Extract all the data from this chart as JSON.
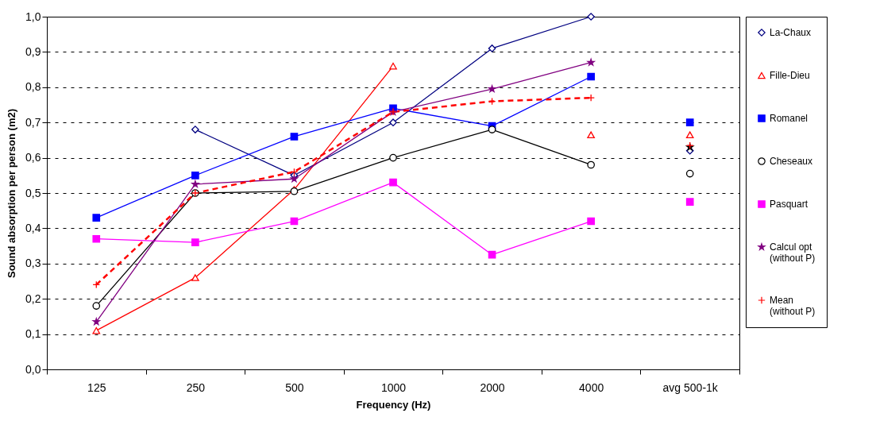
{
  "chart_data": {
    "type": "line",
    "xlabel": "Frequency (Hz)",
    "ylabel": "Sound absorption per person (m2)",
    "categories": [
      "125",
      "250",
      "500",
      "1000",
      "2000",
      "4000",
      "avg 500-1k"
    ],
    "ylim": [
      0,
      1
    ],
    "yticks": [
      {
        "value": 0,
        "label": "0,0"
      },
      {
        "value": 0.1,
        "label": "0,1"
      },
      {
        "value": 0.2,
        "label": "0,2"
      },
      {
        "value": 0.3,
        "label": "0,3"
      },
      {
        "value": 0.4,
        "label": "0,4"
      },
      {
        "value": 0.5,
        "label": "0,5"
      },
      {
        "value": 0.6,
        "label": "0,6"
      },
      {
        "value": 0.7,
        "label": "0,7"
      },
      {
        "value": 0.8,
        "label": "0,8"
      },
      {
        "value": 0.9,
        "label": "0,9"
      },
      {
        "value": 1,
        "label": "1,0"
      }
    ],
    "grid": "y",
    "legend": "right",
    "series": [
      {
        "name": "La-Chaux",
        "color": "#000080",
        "marker": "diamond",
        "line_style": "solid",
        "values": [
          null,
          0.68,
          0.55,
          0.7,
          0.91,
          1.0,
          null
        ]
      },
      {
        "name": "Fille-Dieu",
        "color": "#ff0000",
        "marker": "triangle",
        "line_style": "solid",
        "values": [
          0.11,
          0.26,
          0.51,
          0.86,
          null,
          0.665,
          null
        ]
      },
      {
        "name": "Romanel",
        "color": "#0000ff",
        "marker": "square",
        "line_style": "solid",
        "values": [
          0.43,
          0.55,
          0.66,
          0.74,
          0.69,
          0.83,
          null
        ]
      },
      {
        "name": "Cheseaux",
        "color": "#000000",
        "marker": "circle",
        "line_style": "solid",
        "values": [
          0.18,
          0.5,
          0.505,
          0.6,
          0.68,
          0.58,
          null
        ]
      },
      {
        "name": "Pasquart",
        "color": "#ff00ff",
        "marker": "square",
        "line_style": "solid",
        "values": [
          0.37,
          0.36,
          0.42,
          0.53,
          0.325,
          0.42,
          null
        ]
      },
      {
        "name": "Calcul opt (without P)",
        "color": "#800080",
        "marker": "star",
        "line_style": "solid",
        "values": [
          0.135,
          0.525,
          0.54,
          0.73,
          0.795,
          0.87,
          null
        ]
      },
      {
        "name": "Mean (without P)",
        "color": "#ff0000",
        "marker": "cross",
        "line_style": "dashed",
        "values": [
          0.24,
          0.5,
          0.56,
          0.73,
          0.76,
          0.77,
          null
        ]
      },
      {
        "type": "scatter",
        "color": "#000080",
        "marker": "diamond",
        "values": [
          null,
          null,
          null,
          null,
          null,
          null,
          0.62
        ]
      },
      {
        "type": "scatter",
        "color": "#ff0000",
        "marker": "triangle",
        "values": [
          null,
          null,
          null,
          null,
          null,
          null,
          0.665
        ]
      },
      {
        "type": "scatter",
        "color": "#0000ff",
        "marker": "square",
        "values": [
          null,
          null,
          null,
          null,
          null,
          null,
          0.7
        ]
      },
      {
        "type": "scatter",
        "color": "#000000",
        "marker": "circle",
        "values": [
          null,
          null,
          null,
          null,
          null,
          null,
          0.555
        ]
      },
      {
        "type": "scatter",
        "color": "#ff00ff",
        "marker": "square",
        "values": [
          null,
          null,
          null,
          null,
          null,
          null,
          0.475
        ]
      },
      {
        "type": "scatter",
        "color": "#000000",
        "marker": "star",
        "values": [
          null,
          null,
          null,
          null,
          null,
          null,
          0.63
        ]
      },
      {
        "type": "scatter",
        "color": "#ff0000",
        "marker": "cross",
        "values": [
          null,
          null,
          null,
          null,
          null,
          null,
          0.635
        ]
      }
    ]
  }
}
